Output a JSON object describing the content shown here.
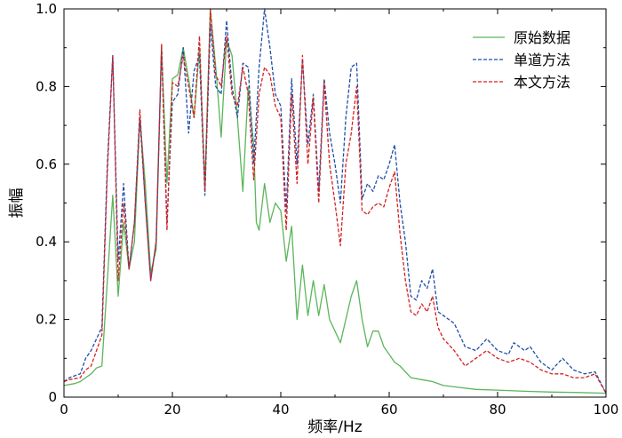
{
  "chart_data": {
    "type": "line",
    "xlabel": "频率/Hz",
    "ylabel": "振幅",
    "xlim": [
      0,
      100
    ],
    "ylim": [
      0,
      1.0
    ],
    "xticks": [
      "0",
      "20",
      "40",
      "60",
      "80",
      "100"
    ],
    "yticks": [
      "0",
      "0.2",
      "0.4",
      "0.6",
      "0.8",
      "1.0"
    ],
    "legend": "top-right",
    "grid": false,
    "series": [
      {
        "name": "原始数据",
        "color": "#5bb55b",
        "style": "solid",
        "points": [
          [
            0,
            0.03
          ],
          [
            2,
            0.035
          ],
          [
            3,
            0.04
          ],
          [
            4,
            0.05
          ],
          [
            5,
            0.06
          ],
          [
            6,
            0.075
          ],
          [
            7,
            0.08
          ],
          [
            8,
            0.3
          ],
          [
            9,
            0.52
          ],
          [
            10,
            0.26
          ],
          [
            11,
            0.45
          ],
          [
            12,
            0.33
          ],
          [
            13,
            0.4
          ],
          [
            14,
            0.72
          ],
          [
            15,
            0.55
          ],
          [
            16,
            0.32
          ],
          [
            17,
            0.38
          ],
          [
            18,
            0.9
          ],
          [
            19,
            0.55
          ],
          [
            20,
            0.82
          ],
          [
            21,
            0.83
          ],
          [
            22,
            0.9
          ],
          [
            23,
            0.82
          ],
          [
            24,
            0.72
          ],
          [
            25,
            0.9
          ],
          [
            26,
            0.55
          ],
          [
            27,
            1.0
          ],
          [
            28,
            0.85
          ],
          [
            29,
            0.67
          ],
          [
            30,
            0.92
          ],
          [
            31,
            0.88
          ],
          [
            32,
            0.72
          ],
          [
            33,
            0.53
          ],
          [
            34,
            0.8
          ],
          [
            35,
            0.65
          ],
          [
            35.5,
            0.45
          ],
          [
            36,
            0.43
          ],
          [
            37,
            0.55
          ],
          [
            38,
            0.45
          ],
          [
            39,
            0.5
          ],
          [
            40,
            0.48
          ],
          [
            41,
            0.35
          ],
          [
            42,
            0.44
          ],
          [
            43,
            0.2
          ],
          [
            44,
            0.34
          ],
          [
            45,
            0.21
          ],
          [
            46,
            0.3
          ],
          [
            47,
            0.21
          ],
          [
            48,
            0.29
          ],
          [
            49,
            0.2
          ],
          [
            50,
            0.17
          ],
          [
            51,
            0.14
          ],
          [
            52,
            0.2
          ],
          [
            53,
            0.26
          ],
          [
            54,
            0.3
          ],
          [
            55,
            0.2
          ],
          [
            56,
            0.13
          ],
          [
            57,
            0.17
          ],
          [
            58,
            0.17
          ],
          [
            59,
            0.13
          ],
          [
            60,
            0.11
          ],
          [
            61,
            0.09
          ],
          [
            62,
            0.08
          ],
          [
            64,
            0.05
          ],
          [
            66,
            0.045
          ],
          [
            68,
            0.04
          ],
          [
            70,
            0.03
          ],
          [
            73,
            0.025
          ],
          [
            76,
            0.02
          ],
          [
            80,
            0.018
          ],
          [
            85,
            0.015
          ],
          [
            90,
            0.013
          ],
          [
            95,
            0.012
          ],
          [
            100,
            0.01
          ]
        ]
      },
      {
        "name": "单道方法",
        "color": "#1f4fa8",
        "style": "dashed",
        "points": [
          [
            0,
            0.04
          ],
          [
            1,
            0.05
          ],
          [
            3,
            0.06
          ],
          [
            4,
            0.1
          ],
          [
            5,
            0.12
          ],
          [
            6,
            0.15
          ],
          [
            7,
            0.18
          ],
          [
            8,
            0.6
          ],
          [
            9,
            0.88
          ],
          [
            10,
            0.35
          ],
          [
            11,
            0.55
          ],
          [
            12,
            0.33
          ],
          [
            13,
            0.45
          ],
          [
            14,
            0.72
          ],
          [
            15,
            0.5
          ],
          [
            16,
            0.3
          ],
          [
            17,
            0.4
          ],
          [
            18,
            0.9
          ],
          [
            19,
            0.45
          ],
          [
            20,
            0.76
          ],
          [
            21,
            0.78
          ],
          [
            22,
            0.9
          ],
          [
            23,
            0.68
          ],
          [
            24,
            0.84
          ],
          [
            25,
            0.88
          ],
          [
            26,
            0.52
          ],
          [
            27,
            0.96
          ],
          [
            28,
            0.8
          ],
          [
            29,
            0.78
          ],
          [
            30,
            0.97
          ],
          [
            31,
            0.8
          ],
          [
            32,
            0.72
          ],
          [
            33,
            0.86
          ],
          [
            34,
            0.85
          ],
          [
            35,
            0.6
          ],
          [
            36,
            0.85
          ],
          [
            37,
            1.0
          ],
          [
            38,
            0.9
          ],
          [
            39,
            0.78
          ],
          [
            40,
            0.75
          ],
          [
            41,
            0.48
          ],
          [
            42,
            0.82
          ],
          [
            43,
            0.6
          ],
          [
            44,
            0.87
          ],
          [
            45,
            0.65
          ],
          [
            46,
            0.78
          ],
          [
            47,
            0.53
          ],
          [
            48,
            0.82
          ],
          [
            49,
            0.68
          ],
          [
            50,
            0.6
          ],
          [
            51,
            0.5
          ],
          [
            52,
            0.72
          ],
          [
            53,
            0.85
          ],
          [
            54,
            0.86
          ],
          [
            55,
            0.51
          ],
          [
            56,
            0.55
          ],
          [
            57,
            0.53
          ],
          [
            58,
            0.57
          ],
          [
            59,
            0.56
          ],
          [
            60,
            0.6
          ],
          [
            61,
            0.65
          ],
          [
            62,
            0.5
          ],
          [
            63,
            0.4
          ],
          [
            64,
            0.26
          ],
          [
            65,
            0.25
          ],
          [
            66,
            0.3
          ],
          [
            67,
            0.28
          ],
          [
            68,
            0.33
          ],
          [
            69,
            0.22
          ],
          [
            70,
            0.21
          ],
          [
            72,
            0.19
          ],
          [
            74,
            0.13
          ],
          [
            76,
            0.12
          ],
          [
            78,
            0.15
          ],
          [
            80,
            0.12
          ],
          [
            82,
            0.11
          ],
          [
            83,
            0.14
          ],
          [
            85,
            0.12
          ],
          [
            86,
            0.13
          ],
          [
            88,
            0.09
          ],
          [
            90,
            0.07
          ],
          [
            92,
            0.1
          ],
          [
            94,
            0.07
          ],
          [
            96,
            0.06
          ],
          [
            98,
            0.065
          ],
          [
            100,
            0.01
          ]
        ]
      },
      {
        "name": "本文方法",
        "color": "#d62020",
        "style": "dashed",
        "points": [
          [
            0,
            0.04
          ],
          [
            1,
            0.045
          ],
          [
            3,
            0.05
          ],
          [
            4,
            0.07
          ],
          [
            5,
            0.08
          ],
          [
            6,
            0.12
          ],
          [
            7,
            0.16
          ],
          [
            8,
            0.58
          ],
          [
            9,
            0.88
          ],
          [
            10,
            0.3
          ],
          [
            11,
            0.5
          ],
          [
            12,
            0.33
          ],
          [
            13,
            0.45
          ],
          [
            14,
            0.74
          ],
          [
            15,
            0.5
          ],
          [
            16,
            0.3
          ],
          [
            17,
            0.4
          ],
          [
            18,
            0.91
          ],
          [
            19,
            0.43
          ],
          [
            20,
            0.81
          ],
          [
            21,
            0.8
          ],
          [
            22,
            0.88
          ],
          [
            23,
            0.8
          ],
          [
            24,
            0.72
          ],
          [
            25,
            0.93
          ],
          [
            26,
            0.53
          ],
          [
            27,
            1.0
          ],
          [
            28,
            0.83
          ],
          [
            29,
            0.8
          ],
          [
            30,
            0.93
          ],
          [
            31,
            0.78
          ],
          [
            32,
            0.75
          ],
          [
            33,
            0.85
          ],
          [
            34,
            0.78
          ],
          [
            35,
            0.56
          ],
          [
            36,
            0.78
          ],
          [
            37,
            0.85
          ],
          [
            38,
            0.83
          ],
          [
            39,
            0.75
          ],
          [
            40,
            0.72
          ],
          [
            41,
            0.43
          ],
          [
            42,
            0.78
          ],
          [
            43,
            0.55
          ],
          [
            44,
            0.88
          ],
          [
            45,
            0.6
          ],
          [
            46,
            0.77
          ],
          [
            47,
            0.5
          ],
          [
            48,
            0.81
          ],
          [
            49,
            0.6
          ],
          [
            50,
            0.5
          ],
          [
            51,
            0.39
          ],
          [
            52,
            0.6
          ],
          [
            53,
            0.68
          ],
          [
            54,
            0.8
          ],
          [
            55,
            0.48
          ],
          [
            56,
            0.47
          ],
          [
            57,
            0.49
          ],
          [
            58,
            0.5
          ],
          [
            59,
            0.49
          ],
          [
            60,
            0.54
          ],
          [
            61,
            0.58
          ],
          [
            62,
            0.42
          ],
          [
            63,
            0.3
          ],
          [
            64,
            0.22
          ],
          [
            65,
            0.21
          ],
          [
            66,
            0.24
          ],
          [
            67,
            0.22
          ],
          [
            68,
            0.26
          ],
          [
            69,
            0.18
          ],
          [
            70,
            0.15
          ],
          [
            72,
            0.12
          ],
          [
            74,
            0.08
          ],
          [
            76,
            0.1
          ],
          [
            78,
            0.12
          ],
          [
            80,
            0.1
          ],
          [
            82,
            0.09
          ],
          [
            84,
            0.1
          ],
          [
            86,
            0.09
          ],
          [
            88,
            0.07
          ],
          [
            90,
            0.06
          ],
          [
            92,
            0.06
          ],
          [
            94,
            0.05
          ],
          [
            96,
            0.05
          ],
          [
            98,
            0.06
          ],
          [
            100,
            0.01
          ]
        ]
      }
    ]
  }
}
